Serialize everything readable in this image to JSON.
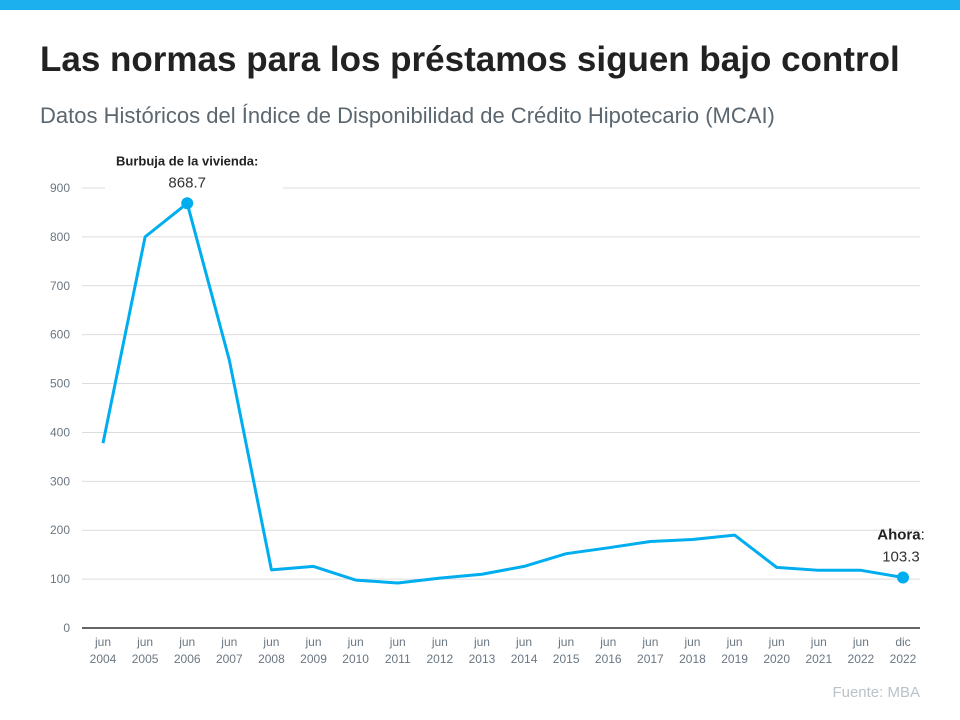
{
  "title": "Las normas para los préstamos siguen bajo control",
  "subtitle": "Datos Históricos del Índice de Disponibilidad de Crédito Hipotecario (MCAI)",
  "source": "Fuente: MBA",
  "colors": {
    "line": "#00aeef",
    "accent_bar": "#1cb0ee"
  },
  "chart_data": {
    "type": "line",
    "title": "",
    "xlabel": "",
    "ylabel": "",
    "ylim": [
      0,
      900
    ],
    "yticks": [
      0,
      100,
      200,
      300,
      400,
      500,
      600,
      700,
      800,
      900
    ],
    "grid": true,
    "categories": [
      [
        "jun",
        "2004"
      ],
      [
        "jun",
        "2005"
      ],
      [
        "jun",
        "2006"
      ],
      [
        "jun",
        "2007"
      ],
      [
        "jun",
        "2008"
      ],
      [
        "jun",
        "2009"
      ],
      [
        "jun",
        "2010"
      ],
      [
        "jun",
        "2011"
      ],
      [
        "jun",
        "2012"
      ],
      [
        "jun",
        "2013"
      ],
      [
        "jun",
        "2014"
      ],
      [
        "jun",
        "2015"
      ],
      [
        "jun",
        "2016"
      ],
      [
        "jun",
        "2017"
      ],
      [
        "jun",
        "2018"
      ],
      [
        "jun",
        "2019"
      ],
      [
        "jun",
        "2020"
      ],
      [
        "jun",
        "2021"
      ],
      [
        "jun",
        "2022"
      ],
      [
        "dic",
        "2022"
      ]
    ],
    "values": [
      378,
      800,
      868.7,
      548,
      119,
      126,
      98,
      92,
      102,
      110,
      126,
      152,
      164,
      177,
      181,
      190,
      124,
      118,
      118,
      103.3
    ],
    "annotations": [
      {
        "index": 2,
        "label": "Burbuja de la vivienda:",
        "value": "868.7"
      },
      {
        "index": 19,
        "label": "Ahora",
        "suffix": ":",
        "value": "103.3"
      }
    ]
  }
}
